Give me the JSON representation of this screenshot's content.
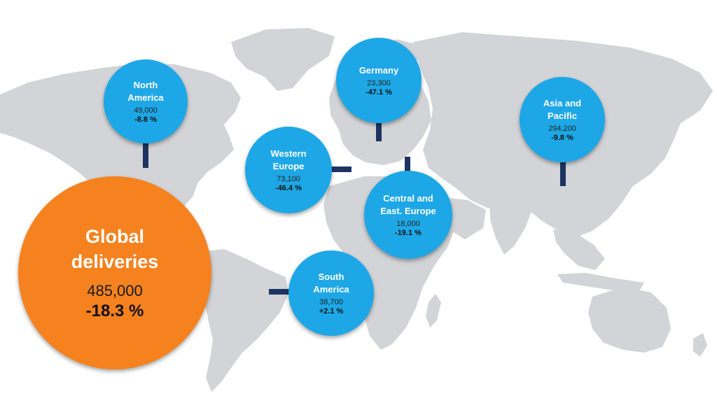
{
  "global": {
    "label": "Global\ndeliveries",
    "units": "485,000",
    "change": "-18.3 %"
  },
  "regions": {
    "north_america": {
      "label": "North\nAmerica",
      "units": "49,000",
      "change": "-8.8 %"
    },
    "germany": {
      "label": "Germany",
      "units": "23,300",
      "change": "-47.1 %"
    },
    "western_europe": {
      "label": "Western\nEurope",
      "units": "73,100",
      "change": "-46.4 %"
    },
    "central_east_europe": {
      "label": "Central and\nEast. Europe",
      "units": "18,000",
      "change": "-19.1 %"
    },
    "asia_pacific": {
      "label": "Asia and\nPacific",
      "units": "294,200",
      "change": "-9.8 %"
    },
    "south_america": {
      "label": "South\nAmerica",
      "units": "38,700",
      "change": "+2.1 %"
    }
  },
  "colors": {
    "land": "#d3d4d8",
    "region_bubble": "#1ea7e6",
    "global_bubble": "#f5821f",
    "connector": "#1d3462"
  }
}
